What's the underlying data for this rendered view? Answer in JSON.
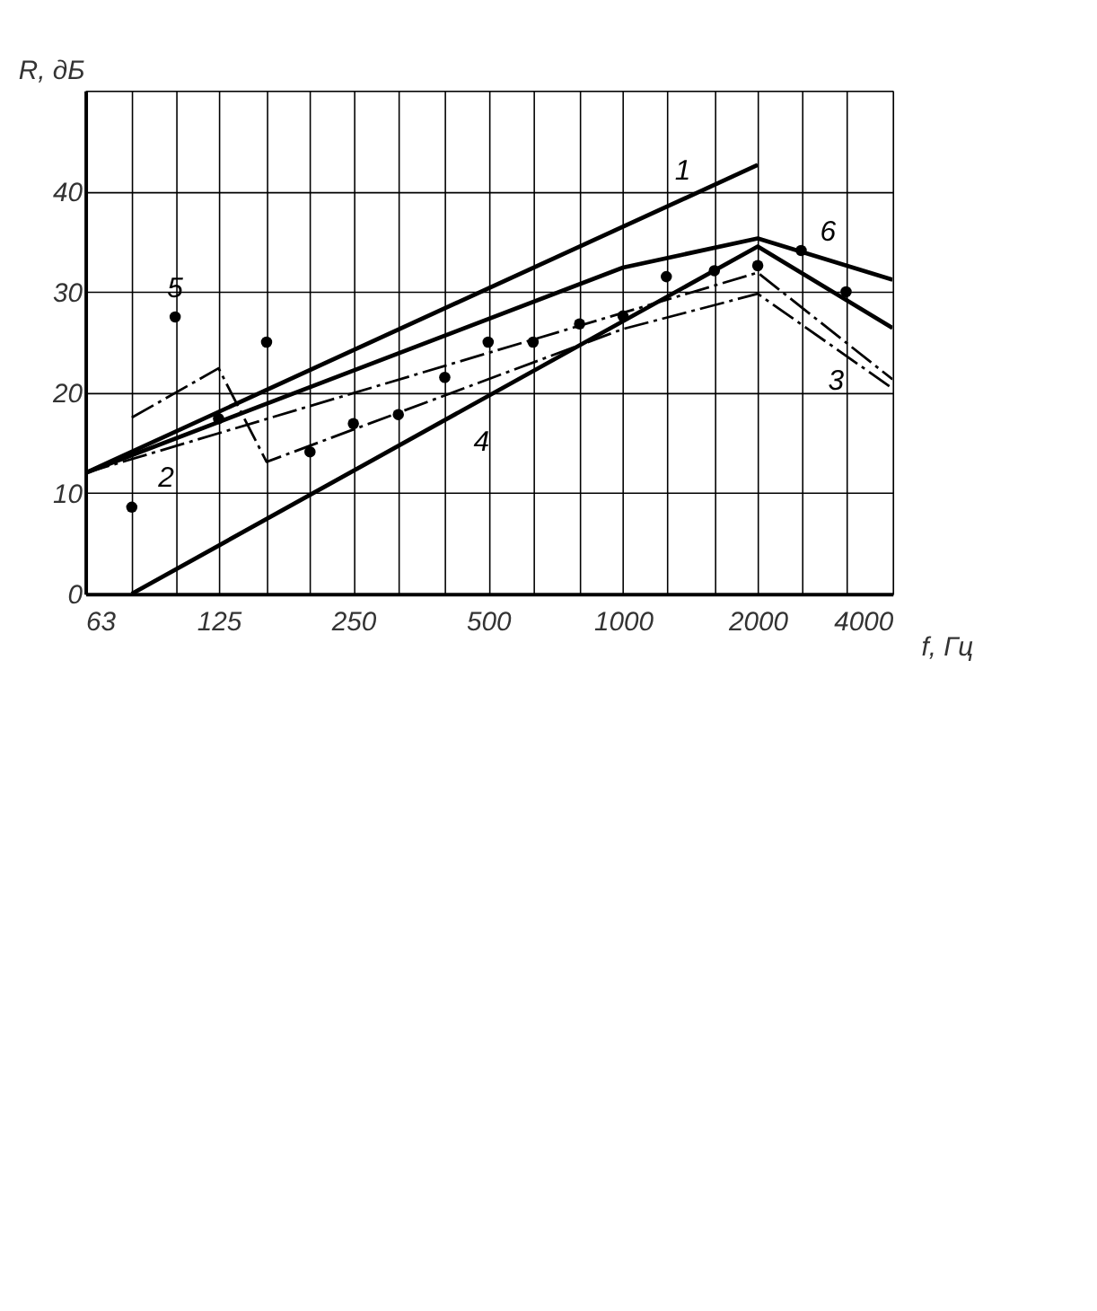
{
  "chart_data": {
    "type": "line",
    "xlabel": "f, Гц",
    "ylabel": "R, дБ",
    "log": "x",
    "xlim": [
      63,
      4000
    ],
    "ylim": [
      0,
      50
    ],
    "xticks": [
      63,
      {
        "value": 80,
        "label": null
      },
      {
        "value": 100,
        "label": null
      },
      125,
      {
        "value": 160,
        "label": null
      },
      {
        "value": 200,
        "label": null
      },
      250,
      {
        "value": 315,
        "label": null
      },
      {
        "value": 400,
        "label": null
      },
      500,
      {
        "value": 630,
        "label": null
      },
      {
        "value": 800,
        "label": null
      },
      1000,
      {
        "value": 1250,
        "label": null
      },
      {
        "value": 1600,
        "label": null
      },
      2000,
      {
        "value": 2500,
        "label": null
      },
      {
        "value": 3150,
        "label": null
      },
      4000
    ],
    "yticks": [
      0,
      10,
      20,
      30,
      40,
      {
        "value": 50,
        "label": null
      }
    ],
    "grid": true,
    "series": [
      {
        "name": "1",
        "color": "#000000",
        "line_style": "solid",
        "x": [
          63,
          2000
        ],
        "values": [
          12,
          42.6
        ]
      },
      {
        "name": "6",
        "color": "#000000",
        "line_style": "solid",
        "x": [
          63,
          1000,
          2000,
          4000
        ],
        "values": [
          12,
          32.4,
          35.3,
          31.2
        ]
      },
      {
        "name": "2",
        "color": "#000000",
        "line_style": "dashed",
        "x": [
          63,
          2000,
          4000
        ],
        "values": [
          12,
          31.9,
          21.3
        ]
      },
      {
        "name": "3",
        "color": "#000000",
        "line_style": "dashed",
        "x": [
          80,
          125,
          160,
          1000,
          2000,
          4000
        ],
        "values": [
          17.5,
          22.4,
          13.1,
          26.3,
          29.8,
          20.4
        ]
      },
      {
        "name": "4",
        "color": "#000000",
        "line_style": "solid",
        "x": [
          80,
          2000,
          4000
        ],
        "values": [
          0,
          34.5,
          26.4
        ]
      },
      {
        "name": "5",
        "type": "scatter",
        "marker": "circle",
        "color": "#000000",
        "x": [
          80,
          100,
          125,
          160,
          200,
          250,
          315,
          400,
          500,
          630,
          800,
          1000,
          1250,
          1600,
          2000,
          2500,
          3150
        ],
        "values": [
          8.6,
          27.5,
          17.4,
          25.0,
          14.1,
          16.9,
          17.8,
          21.5,
          25.0,
          25.0,
          26.8,
          27.6,
          31.5,
          32.1,
          32.6,
          34.1,
          30.0
        ]
      }
    ]
  }
}
